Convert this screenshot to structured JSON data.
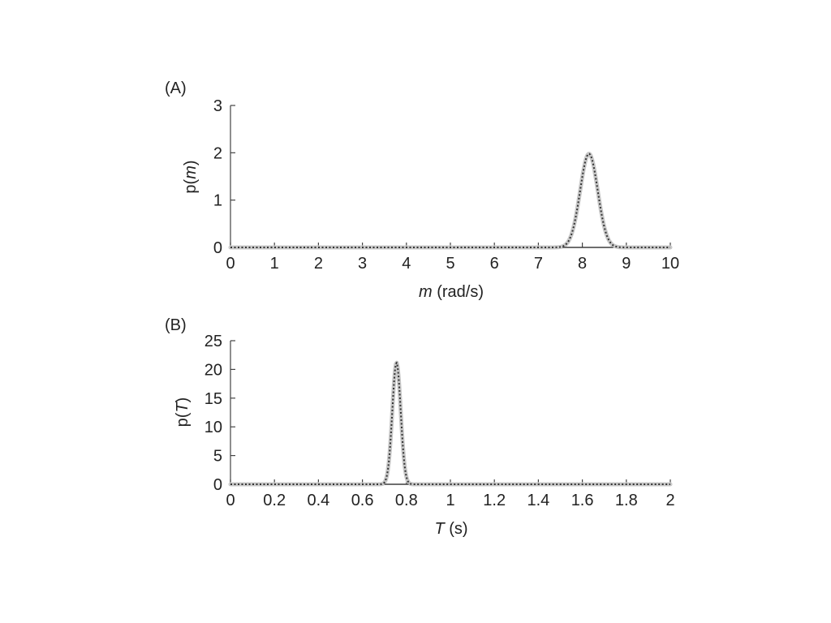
{
  "chart_data": [
    {
      "panel": "(A)",
      "type": "line",
      "xlabel_var": "m",
      "xlabel_unit": " (rad/s)",
      "ylabel_fn": "p(",
      "ylabel_var": "m",
      "ylabel_close": ")",
      "xlim": [
        0,
        10
      ],
      "ylim": [
        0,
        3
      ],
      "xticks": [
        0,
        1,
        2,
        3,
        4,
        5,
        6,
        7,
        8,
        9,
        10
      ],
      "xtick_labels": [
        "0",
        "1",
        "2",
        "3",
        "4",
        "5",
        "6",
        "7",
        "8",
        "9",
        "10"
      ],
      "yticks": [
        0,
        1,
        2,
        3
      ],
      "ytick_labels": [
        "0",
        "1",
        "2",
        "3"
      ],
      "distribution": {
        "shape": "gaussian",
        "mean": 8.15,
        "sd": 0.2,
        "peak": 1.98
      },
      "baseline_range": [
        7.55,
        8.7
      ],
      "grid": false,
      "colors": {
        "band": "#c8c8c8",
        "dotted": "#333333",
        "axis": "#444444"
      }
    },
    {
      "panel": "(B)",
      "type": "line",
      "xlabel_var": "T",
      "xlabel_unit": " (s)",
      "ylabel_fn": "p(",
      "ylabel_var": "T",
      "ylabel_close": ")",
      "xlim": [
        0,
        2
      ],
      "ylim": [
        0,
        25
      ],
      "xticks": [
        0,
        0.2,
        0.4,
        0.6,
        0.8,
        1,
        1.2,
        1.4,
        1.6,
        1.8,
        2
      ],
      "xtick_labels": [
        "0",
        "0.2",
        "0.4",
        "0.6",
        "0.8",
        "1",
        "1.2",
        "1.4",
        "1.6",
        "1.8",
        "2"
      ],
      "yticks": [
        0,
        5,
        10,
        15,
        20,
        25
      ],
      "ytick_labels": [
        "0",
        "5",
        "10",
        "15",
        "20",
        "25"
      ],
      "distribution": {
        "shape": "gaussian",
        "mean": 0.755,
        "sd": 0.019,
        "peak": 21.2
      },
      "baseline_range": [
        0.7,
        0.81
      ],
      "grid": false,
      "colors": {
        "band": "#c8c8c8",
        "dotted": "#333333",
        "axis": "#444444"
      }
    }
  ]
}
